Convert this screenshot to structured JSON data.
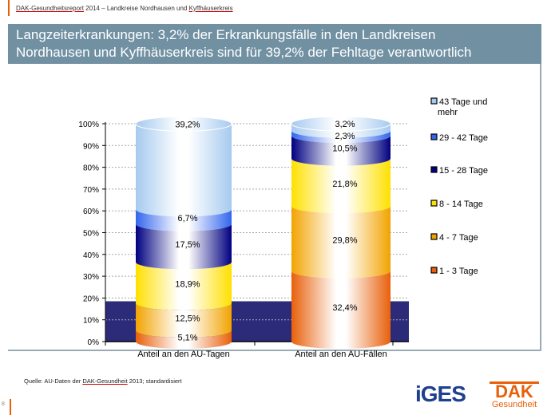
{
  "header": {
    "report": "DAK-Gesundheitsreport",
    "rest": " 2014 – Landkreise Nordhausen und ",
    "kreis": "Kyffhäuserkreis"
  },
  "title": {
    "line1": "Langzeiterkrankungen: 3,2% der Erkrankungsfälle in den Landkreisen",
    "line2": "Nordhausen und Kyffhäuserkreis sind für 39,2% der Fehltage verantwortlich"
  },
  "source": {
    "pre": "Quelle: AU-Daten der ",
    "dak": "DAK-Gesundheit",
    "post": " 2013; standardisiert"
  },
  "page_number": "8",
  "logos": {
    "iges": "iGES",
    "dak1": "DAK",
    "dak2": "Gesundheit"
  },
  "chart_data": {
    "type": "bar",
    "stacked": true,
    "style": "3d-cylinder",
    "categories": [
      "Anteil an den AU-Tagen",
      "Anteil an den AU-Fällen"
    ],
    "ylim": [
      0,
      100
    ],
    "yticks": [
      "0%",
      "10%",
      "20%",
      "30%",
      "40%",
      "50%",
      "60%",
      "70%",
      "80%",
      "90%",
      "100%"
    ],
    "grid": true,
    "legend_position": "right",
    "series": [
      {
        "name": "1 - 3 Tage",
        "color": "#e8600a",
        "values": [
          5.1,
          32.4
        ],
        "labels": [
          "5,1%",
          "32,4%"
        ]
      },
      {
        "name": "4 - 7 Tage",
        "color": "#f2a300",
        "values": [
          12.5,
          29.8
        ],
        "labels": [
          "12,5%",
          "29,8%"
        ]
      },
      {
        "name": "8 - 14 Tage",
        "color": "#ffe000",
        "values": [
          18.9,
          21.8
        ],
        "labels": [
          "18,9%",
          "21,8%"
        ]
      },
      {
        "name": "15 - 28 Tage",
        "color": "#000080",
        "values": [
          17.5,
          10.5
        ],
        "labels": [
          "17,5%",
          "10,5%"
        ]
      },
      {
        "name": "29 - 42 Tage",
        "color": "#3366ee",
        "values": [
          6.7,
          2.3
        ],
        "labels": [
          "6,7%",
          "2,3%"
        ]
      },
      {
        "name": "43 Tage und mehr",
        "color": "#a6caf0",
        "values": [
          39.2,
          3.2
        ],
        "labels": [
          "39,2%",
          "3,2%"
        ]
      }
    ],
    "floor_color": "#2b2b7a"
  }
}
